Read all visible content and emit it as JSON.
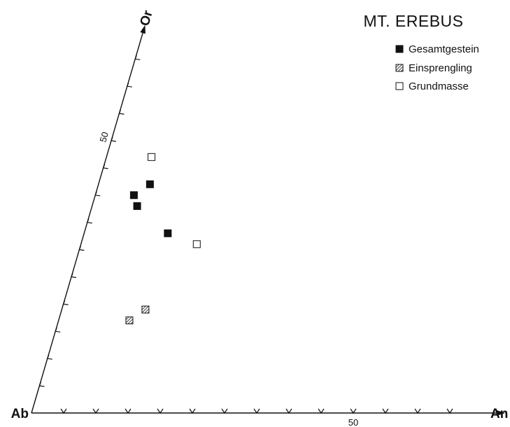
{
  "chart_data": {
    "type": "scatter",
    "diagram": "ternary",
    "title": "MT. EREBUS",
    "vertices": {
      "bottom_left": "Ab",
      "bottom_right": "An",
      "top": "Or"
    },
    "tick_step": 5,
    "tick_labels": {
      "or_axis": "50",
      "an_axis": "50"
    },
    "axis_range": [
      0,
      70
    ],
    "legend_placement": "top-right",
    "series": [
      {
        "name": "Gesamtgestein",
        "marker": "filled-square",
        "points": [
          {
            "an": 6,
            "or": 40
          },
          {
            "an": 7,
            "or": 38
          },
          {
            "an": 8,
            "or": 42
          },
          {
            "an": 13,
            "or": 33
          }
        ]
      },
      {
        "name": "Einsprengling",
        "marker": "hatched-square",
        "points": [
          {
            "an": 13,
            "or": 19
          },
          {
            "an": 11,
            "or": 17
          }
        ]
      },
      {
        "name": "Grundmasse",
        "marker": "open-square",
        "points": [
          {
            "an": 7,
            "or": 47
          },
          {
            "an": 18,
            "or": 31
          }
        ]
      }
    ]
  }
}
